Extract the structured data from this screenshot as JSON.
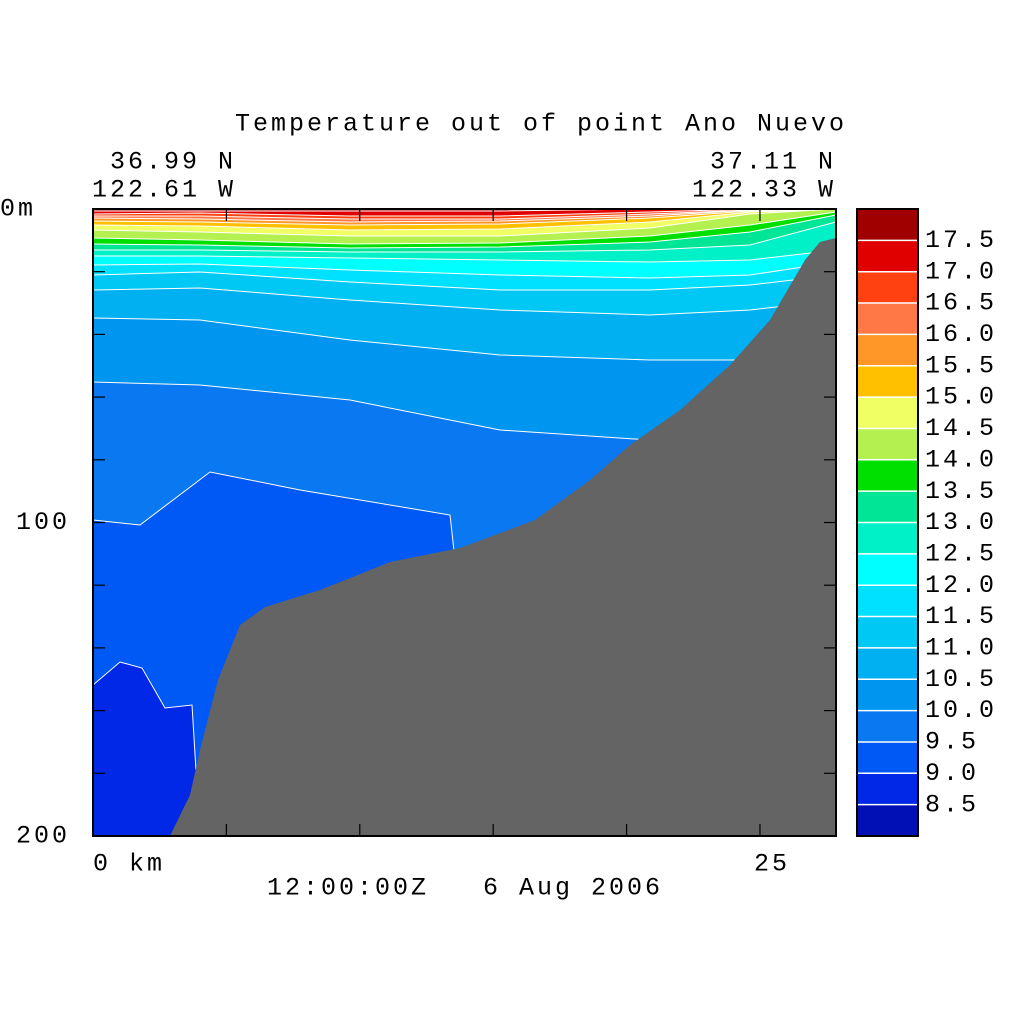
{
  "chart_data": {
    "type": "contour",
    "title": "Temperature out of point Ano Nuevo",
    "corner_labels": {
      "left": [
        "36.99 N",
        "122.61 W"
      ],
      "right": [
        "37.11 N",
        "122.33 W"
      ]
    },
    "time_label": "12:00:00Z   6 Aug 2006",
    "xlim": [
      0,
      27.85
    ],
    "xticks": [
      {
        "value": 0,
        "label": "0 km"
      },
      {
        "value": 25,
        "label": "25"
      }
    ],
    "xminorticks": [
      5,
      10,
      15,
      20
    ],
    "ylim": [
      0,
      200
    ],
    "yticks": [
      {
        "value": 0,
        "label": "0m"
      },
      100,
      200
    ],
    "yminorticks": [
      20,
      40,
      60,
      80,
      120,
      140,
      160,
      180
    ],
    "terrain_color": "#646464",
    "colorbar": {
      "levels": [
        8.5,
        {
          "value": 9,
          "label": "9.0"
        },
        9.5,
        {
          "value": 10,
          "label": "10.0"
        },
        10.5,
        {
          "value": 11,
          "label": "11.0"
        },
        11.5,
        {
          "value": 12,
          "label": "12.0"
        },
        12.5,
        {
          "value": 13,
          "label": "13.0"
        },
        13.5,
        {
          "value": 14,
          "label": "14.0"
        },
        14.5,
        {
          "value": 15,
          "label": "15.0"
        },
        15.5,
        {
          "value": 16,
          "label": "16.0"
        },
        16.5,
        {
          "value": 17,
          "label": "17.0"
        },
        17.5
      ],
      "colors": [
        "#0010b4",
        "#0028e6",
        "#0058f5",
        "#0a78f0",
        "#0096f0",
        "#00b0f0",
        "#00c8f5",
        "#00e0ff",
        "#00ffff",
        "#00f0c8",
        "#00e696",
        "#00e000",
        "#b4f050",
        "#f0ff64",
        "#ffc000",
        "#ff9628",
        "#ff7846",
        "#ff4010",
        "#e00000",
        "#a00000"
      ]
    }
  }
}
